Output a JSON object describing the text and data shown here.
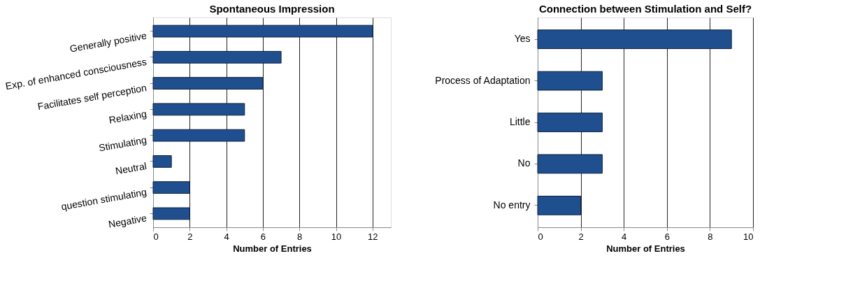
{
  "chart_data": [
    {
      "type": "bar",
      "orientation": "horizontal",
      "title": "Spontaneous Impression",
      "xlabel": "Number of Entries",
      "categories": [
        "Generally positive",
        "Exp. of enhanced consciousness",
        "Facilitates self perception",
        "Relaxing",
        "Stimulating",
        "Neutral",
        "question stimulating",
        "Negative"
      ],
      "values": [
        12,
        7,
        6,
        5,
        5,
        1,
        2,
        2
      ],
      "color": "#1f4f8f",
      "xlim": [
        0,
        13
      ],
      "xticks": [
        0,
        2,
        4,
        6,
        8,
        10,
        12
      ],
      "grid": "x"
    },
    {
      "type": "bar",
      "orientation": "horizontal",
      "title": "Connection between Stimulation and Self?",
      "xlabel": "Number of Entries",
      "categories": [
        "Yes",
        "Process of Adaptation",
        "Little",
        "No",
        "No entry"
      ],
      "values": [
        9,
        3,
        3,
        3,
        2
      ],
      "color": "#1f4f8f",
      "xlim": [
        0,
        10
      ],
      "xticks": [
        0,
        2,
        4,
        6,
        8,
        10
      ],
      "grid": "x"
    }
  ]
}
